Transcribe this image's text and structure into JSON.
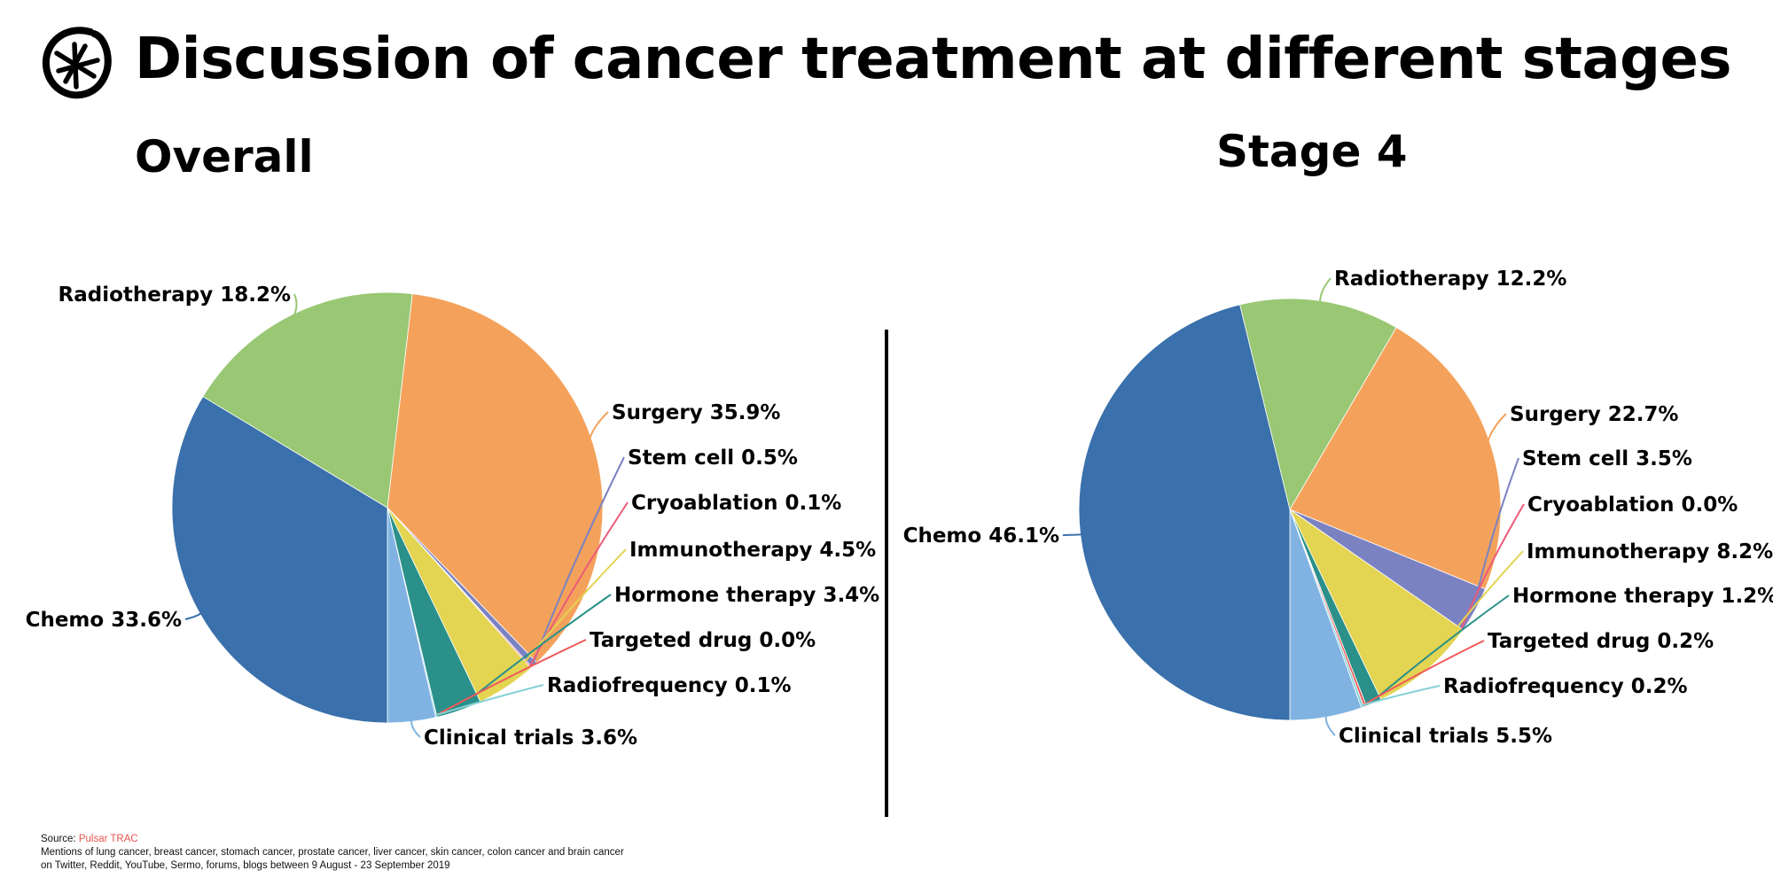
{
  "header": {
    "logo_icon": "asterisk-circle-icon",
    "title": "Discussion of cancer treatment at different stages"
  },
  "chart_data": [
    {
      "type": "pie",
      "title": "Overall",
      "categories": [
        "Surgery",
        "Stem cell",
        "Cryoablation",
        "Immunotherapy",
        "Hormone therapy",
        "Targeted drug",
        "Radiofrequency",
        "Clinical trials",
        "Chemo",
        "Radiotherapy"
      ],
      "values": [
        35.9,
        0.5,
        0.1,
        4.5,
        3.4,
        0.0,
        0.1,
        3.6,
        33.6,
        18.2
      ],
      "labels": [
        "Surgery 35.9%",
        "Stem cell 0.5%",
        "Cryoablation 0.1%",
        "Immunotherapy 4.5%",
        "Hormone therapy 3.4%",
        "Targeted drug 0.0%",
        "Radiofrequency 0.1%",
        "Clinical trials 3.6%",
        "Chemo 33.6%",
        "Radiotherapy 18.2%"
      ],
      "colors": [
        "#f4a25b",
        "#7b82c2",
        "#ec5a78",
        "#e3d452",
        "#2a9089",
        "#f05a5a",
        "#86d1d6",
        "#80b3e2",
        "#3a70ab",
        "#99c774"
      ],
      "unit": "%"
    },
    {
      "type": "pie",
      "title": "Stage 4",
      "categories": [
        "Surgery",
        "Stem cell",
        "Cryoablation",
        "Immunotherapy",
        "Hormone therapy",
        "Targeted drug",
        "Radiofrequency",
        "Clinical trials",
        "Chemo",
        "Radiotherapy"
      ],
      "values": [
        22.7,
        3.5,
        0.0,
        8.2,
        1.2,
        0.2,
        0.2,
        5.5,
        46.1,
        12.2
      ],
      "labels": [
        "Surgery 22.7%",
        "Stem cell 3.5%",
        "Cryoablation 0.0%",
        "Immunotherapy 8.2%",
        "Hormone therapy 1.2%",
        "Targeted drug 0.2%",
        "Radiofrequency 0.2%",
        "Clinical trials 5.5%",
        "Chemo 46.1%",
        "Radiotherapy 12.2%"
      ],
      "colors": [
        "#f4a25b",
        "#7b82c2",
        "#ec5a78",
        "#e3d452",
        "#2a9089",
        "#f05a5a",
        "#86d1d6",
        "#80b3e2",
        "#3a70ab",
        "#99c774"
      ],
      "unit": "%"
    }
  ],
  "footer": {
    "source_label": "Source: ",
    "source_name": "Pulsar TRAC",
    "line1": "Mentions of lung cancer, breast cancer, stomach cancer, prostate cancer, liver cancer, skin cancer, colon cancer and brain cancer",
    "line2": "on Twitter, Reddit, YouTube, Sermo, forums, blogs between 9 August - 23 September 2019"
  }
}
